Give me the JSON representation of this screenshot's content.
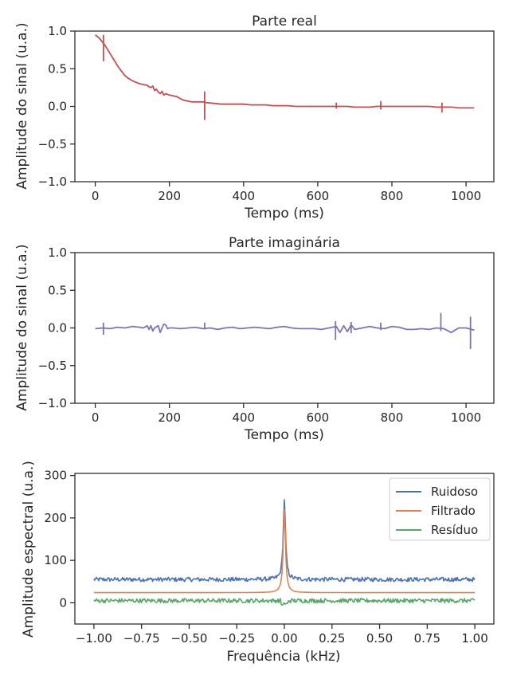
{
  "chart_data": [
    {
      "type": "line",
      "title": "Parte real",
      "xlabel": "Tempo (ms)",
      "ylabel": "Amplitude do sinal (u.a.)",
      "xlim": [
        -55,
        1075
      ],
      "ylim": [
        -1.0,
        1.0
      ],
      "xticks": [
        0,
        200,
        400,
        600,
        800,
        1000
      ],
      "yticks": [
        -1.0,
        -0.5,
        0.0,
        0.5,
        1.0
      ],
      "xtick_labels": [
        "0",
        "200",
        "400",
        "600",
        "800",
        "1000"
      ],
      "ytick_labels": [
        "−1.0",
        "−0.5",
        "0.0",
        "0.5",
        "1.0"
      ],
      "grid": false,
      "color": "#c44e52",
      "series": [
        {
          "x": [
            0,
            5,
            10,
            15,
            20,
            25,
            30,
            40,
            50,
            60,
            70,
            80,
            90,
            100,
            110,
            120,
            130,
            140,
            145,
            150,
            155,
            160,
            165,
            170,
            175,
            180,
            185,
            190,
            195,
            200,
            210,
            220,
            230,
            240,
            250,
            260,
            270,
            280,
            290,
            300,
            320,
            340,
            360,
            380,
            400,
            420,
            440,
            460,
            480,
            500,
            520,
            540,
            560,
            580,
            600,
            620,
            640,
            660,
            680,
            700,
            720,
            740,
            760,
            780,
            800,
            820,
            840,
            860,
            880,
            900,
            920,
            940,
            960,
            980,
            1000,
            1022
          ],
          "y": [
            0.95,
            0.93,
            0.91,
            0.88,
            0.85,
            0.82,
            0.78,
            0.7,
            0.62,
            0.54,
            0.47,
            0.41,
            0.37,
            0.34,
            0.32,
            0.3,
            0.29,
            0.28,
            0.26,
            0.25,
            0.27,
            0.21,
            0.23,
            0.19,
            0.17,
            0.2,
            0.15,
            0.17,
            0.16,
            0.15,
            0.14,
            0.13,
            0.1,
            0.08,
            0.07,
            0.06,
            0.06,
            0.06,
            0.06,
            0.05,
            0.04,
            0.03,
            0.03,
            0.03,
            0.03,
            0.02,
            0.02,
            0.02,
            0.01,
            0.01,
            0.01,
            0.0,
            0.0,
            0.0,
            0.0,
            0.0,
            0.0,
            0.0,
            0.0,
            -0.01,
            -0.01,
            -0.01,
            0.0,
            0.0,
            0.0,
            0.0,
            0.0,
            0.0,
            0.0,
            0.0,
            -0.01,
            -0.01,
            -0.01,
            -0.02,
            -0.02,
            -0.02
          ]
        }
      ],
      "spikes": [
        {
          "x": 22,
          "ymin": 0.6,
          "ymax": 0.95
        },
        {
          "x": 295,
          "ymin": -0.18,
          "ymax": 0.2
        },
        {
          "x": 650,
          "ymin": -0.03,
          "ymax": 0.05
        },
        {
          "x": 770,
          "ymin": -0.04,
          "ymax": 0.07
        },
        {
          "x": 935,
          "ymin": -0.08,
          "ymax": 0.05
        }
      ]
    },
    {
      "type": "line",
      "title": "Parte imaginária",
      "xlabel": "Tempo (ms)",
      "ylabel": "Amplitude do sinal (u.a.)",
      "xlim": [
        -55,
        1075
      ],
      "ylim": [
        -1.0,
        1.0
      ],
      "xticks": [
        0,
        200,
        400,
        600,
        800,
        1000
      ],
      "yticks": [
        -1.0,
        -0.5,
        0.0,
        0.5,
        1.0
      ],
      "xtick_labels": [
        "0",
        "200",
        "400",
        "600",
        "800",
        "1000"
      ],
      "ytick_labels": [
        "−1.0",
        "−0.5",
        "0.0",
        "0.5",
        "1.0"
      ],
      "grid": false,
      "color": "#8172b2",
      "series": [
        {
          "x": [
            0,
            20,
            40,
            60,
            80,
            100,
            120,
            130,
            140,
            145,
            150,
            155,
            160,
            170,
            175,
            180,
            185,
            190,
            195,
            200,
            210,
            230,
            250,
            270,
            290,
            310,
            330,
            350,
            370,
            390,
            410,
            430,
            450,
            470,
            490,
            510,
            530,
            550,
            570,
            590,
            610,
            630,
            650,
            660,
            670,
            680,
            690,
            700,
            720,
            740,
            760,
            780,
            800,
            820,
            840,
            860,
            880,
            900,
            920,
            940,
            960,
            980,
            1000,
            1022
          ],
          "y": [
            -0.01,
            0.0,
            -0.01,
            0.01,
            0.0,
            0.02,
            0.01,
            0.0,
            0.03,
            -0.02,
            0.03,
            -0.04,
            0.0,
            0.03,
            -0.06,
            0.0,
            0.05,
            0.04,
            -0.01,
            0.0,
            0.0,
            -0.01,
            0.0,
            0.01,
            -0.01,
            0.0,
            -0.02,
            0.0,
            0.01,
            -0.01,
            0.0,
            0.01,
            0.0,
            -0.01,
            0.01,
            0.02,
            0.0,
            -0.01,
            -0.01,
            -0.01,
            -0.02,
            0.0,
            0.02,
            -0.06,
            0.03,
            -0.05,
            0.04,
            -0.02,
            0.0,
            0.02,
            0.0,
            -0.01,
            0.02,
            0.01,
            -0.02,
            -0.02,
            -0.01,
            -0.02,
            0.0,
            -0.01,
            -0.06,
            0.0,
            0.0,
            -0.03
          ]
        }
      ],
      "spikes": [
        {
          "x": 22,
          "ymin": -0.09,
          "ymax": 0.07
        },
        {
          "x": 295,
          "ymin": -0.02,
          "ymax": 0.07
        },
        {
          "x": 648,
          "ymin": -0.16,
          "ymax": 0.09
        },
        {
          "x": 690,
          "ymin": -0.07,
          "ymax": 0.08
        },
        {
          "x": 770,
          "ymin": -0.03,
          "ymax": 0.07
        },
        {
          "x": 932,
          "ymin": -0.04,
          "ymax": 0.2
        },
        {
          "x": 1012,
          "ymin": -0.28,
          "ymax": 0.15
        }
      ]
    },
    {
      "type": "line",
      "title": "",
      "xlabel": "Frequência (kHz)",
      "ylabel": "Amplitude espectral (u.a.)",
      "xlim": [
        -1.1,
        1.1
      ],
      "ylim": [
        -50,
        305
      ],
      "xticks": [
        -1.0,
        -0.75,
        -0.5,
        -0.25,
        0.0,
        0.25,
        0.5,
        0.75,
        1.0
      ],
      "yticks": [
        0,
        100,
        200,
        300
      ],
      "xtick_labels": [
        "−1.00",
        "−0.75",
        "−0.50",
        "−0.25",
        "0.00",
        "0.25",
        "0.50",
        "0.75",
        "1.00"
      ],
      "ytick_labels": [
        "0",
        "100",
        "200",
        "300"
      ],
      "grid": false,
      "legend": {
        "location": "top-right",
        "entries": [
          {
            "label": "Ruidoso",
            "color": "#4c72b0"
          },
          {
            "label": "Filtrado",
            "color": "#dd8452"
          },
          {
            "label": "Resíduo",
            "color": "#55a868"
          }
        ]
      },
      "series": [
        {
          "name": "Ruidoso",
          "color": "#4c72b0",
          "baseline": 55,
          "noise": 5,
          "peak_x": 0.0,
          "peak_y": 245
        },
        {
          "name": "Filtrado",
          "color": "#dd8452",
          "baseline": 24,
          "noise": 0,
          "peak_x": 0.0,
          "peak_y": 220
        },
        {
          "name": "Resíduo",
          "color": "#55a868",
          "baseline": 5,
          "noise": 5,
          "peak_x": 0.0,
          "peak_y": -3
        }
      ]
    }
  ]
}
